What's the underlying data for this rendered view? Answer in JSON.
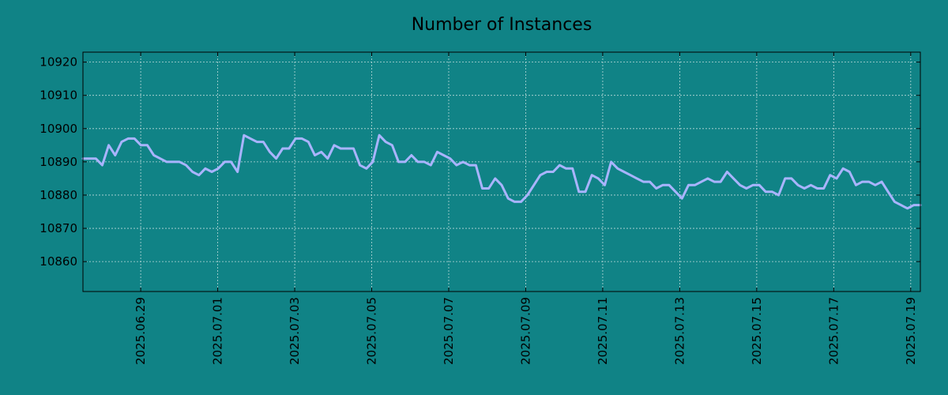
{
  "chart_data": {
    "type": "line",
    "title": "Number of Instances",
    "xlabel": "",
    "ylabel": "",
    "x_start": "2025.06.27 12:00",
    "x_end": "2025.07.19 06:00",
    "ylim": [
      10851,
      10923
    ],
    "y_ticks": [
      10860,
      10870,
      10880,
      10890,
      10900,
      10910,
      10920
    ],
    "x_ticks": [
      "2025.06.29",
      "2025.07.01",
      "2025.07.03",
      "2025.07.05",
      "2025.07.07",
      "2025.07.09",
      "2025.07.11",
      "2025.07.13",
      "2025.07.15",
      "2025.07.17",
      "2025.07.19"
    ],
    "grid": true,
    "colors": {
      "background": "#108386",
      "line": "#a9b4ff"
    },
    "series": [
      {
        "values": [
          10891,
          10891,
          10891,
          10889,
          10895,
          10892,
          10896,
          10897,
          10897,
          10895,
          10895,
          10892,
          10891,
          10890,
          10890,
          10890,
          10889,
          10887,
          10886,
          10888,
          10887,
          10888,
          10890,
          10890,
          10887,
          10898,
          10897,
          10896,
          10896,
          10893,
          10891,
          10894,
          10894,
          10897,
          10897,
          10896,
          10892,
          10893,
          10891,
          10895,
          10894,
          10894,
          10894,
          10889,
          10888,
          10890,
          10898,
          10896,
          10895,
          10890,
          10890,
          10892,
          10890,
          10890,
          10889,
          10893,
          10892,
          10891,
          10889,
          10890,
          10889,
          10889,
          10882,
          10882,
          10885,
          10883,
          10879,
          10878,
          10878,
          10880,
          10883,
          10886,
          10887,
          10887,
          10889,
          10888,
          10888,
          10881,
          10881,
          10886,
          10885,
          10883,
          10890,
          10888,
          10887,
          10886,
          10885,
          10884,
          10884,
          10882,
          10883,
          10883,
          10881,
          10879,
          10883,
          10883,
          10884,
          10885,
          10884,
          10884,
          10887,
          10885,
          10883,
          10882,
          10883,
          10883,
          10881,
          10881,
          10880,
          10885,
          10885,
          10883,
          10882,
          10883,
          10882,
          10882,
          10886,
          10885,
          10888,
          10887,
          10883,
          10884,
          10884,
          10883,
          10884,
          10881,
          10878,
          10877,
          10876,
          10877,
          10877
        ]
      }
    ]
  }
}
